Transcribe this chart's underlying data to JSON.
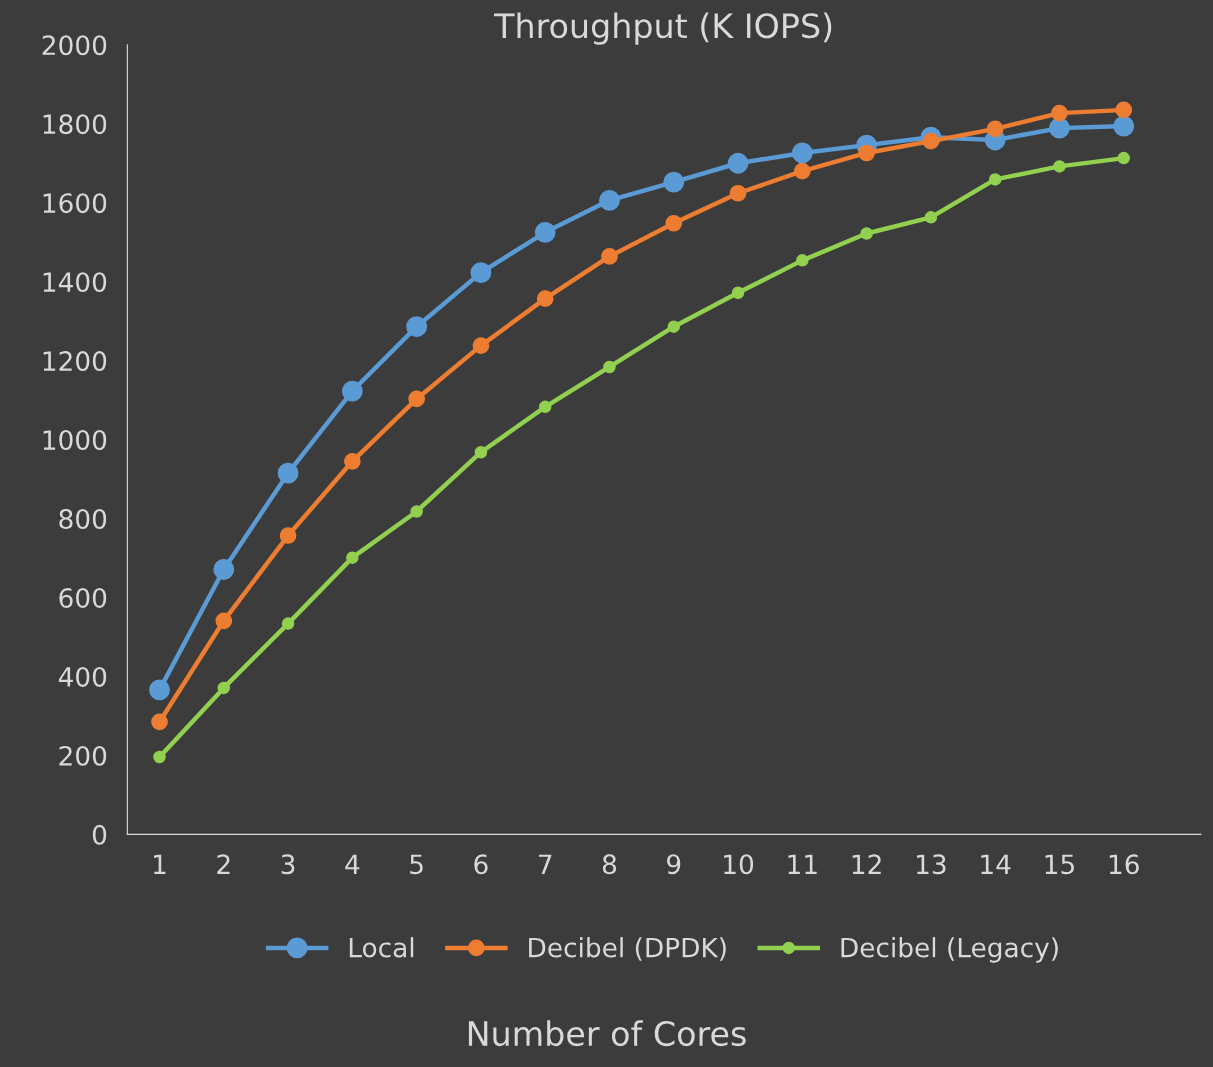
{
  "chart_data": {
    "type": "line",
    "title": "Throughput (K IOPS)",
    "xlabel": "Number of Cores",
    "categories": [
      "1",
      "2",
      "3",
      "4",
      "5",
      "6",
      "7",
      "8",
      "9",
      "10",
      "11",
      "12",
      "13",
      "14",
      "15",
      "16"
    ],
    "series": [
      {
        "name": "Local",
        "color": "#5b9bd5",
        "values": [
          366,
          671,
          915,
          1123,
          1286,
          1423,
          1525,
          1606,
          1652,
          1700,
          1726,
          1746,
          1766,
          1759,
          1789,
          1794
        ]
      },
      {
        "name": "Decibel (DPDK)",
        "color": "#ed7d31",
        "values": [
          285,
          541,
          757,
          945,
          1103,
          1238,
          1357,
          1464,
          1548,
          1624,
          1680,
          1726,
          1756,
          1787,
          1827,
          1835
        ]
      },
      {
        "name": "Decibel (Legacy)",
        "color": "#92d050",
        "values": [
          196,
          371,
          534,
          701,
          818,
          968,
          1083,
          1184,
          1286,
          1372,
          1454,
          1522,
          1563,
          1659,
          1692,
          1713
        ]
      }
    ],
    "ylim": [
      0,
      2000
    ],
    "yticks": [
      0,
      200,
      400,
      600,
      800,
      1000,
      1200,
      1400,
      1600,
      1800,
      2000
    ],
    "grid": false,
    "legend": "bottom",
    "marker": "circle",
    "line_style": "solid"
  }
}
